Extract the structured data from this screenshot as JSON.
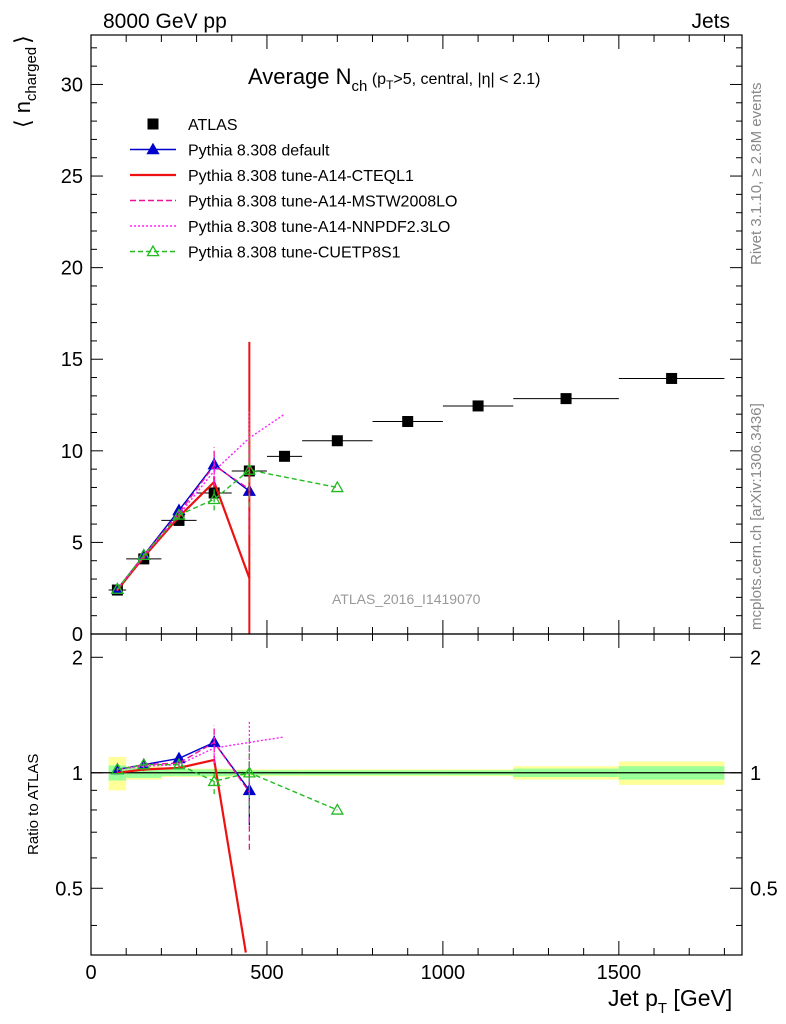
{
  "header": {
    "left": "8000 GeV pp",
    "right": "Jets"
  },
  "plot_title": {
    "main": "Average N",
    "sub": "ch",
    "rest_a": " (p",
    "rest_sub": "T",
    "rest_b": ">5, central, |η| < 2.1)"
  },
  "ylabel": {
    "open": "⟨ n",
    "sub": "charged",
    "close": "⟩"
  },
  "ratio_ylabel": "Ratio to ATLAS",
  "xlabel": {
    "main": "Jet p",
    "sub": "T",
    "unit": " [GeV]"
  },
  "side_texts": {
    "rivet": "Rivet 3.1.10, ≥ 2.8M events",
    "mcplots": "mcplots.cern.ch [arXiv:1306.3436]"
  },
  "watermark": "ATLAS_2016_I1419070",
  "colors": {
    "atlas": "#000000",
    "default": "#0000cc",
    "cteql1": "#ee1111",
    "mstw": "#ee1199",
    "nnpdf": "#ff22ff",
    "cuetp8s1": "#22bb22",
    "band_inner": "#99ff99",
    "band_outer": "#ffff99"
  },
  "chart_data": [
    {
      "type": "scatter",
      "panel": "main",
      "xlim": [
        0,
        1850
      ],
      "ylim": [
        0,
        32.7
      ],
      "yticks": [
        0,
        5,
        10,
        15,
        20,
        25,
        30
      ],
      "xticks": [
        0,
        500,
        1000,
        1500
      ],
      "series": [
        {
          "name": "ATLAS",
          "key": "atlas",
          "style": "square",
          "x": [
            75,
            150,
            250,
            350,
            450,
            550,
            700,
            900,
            1100,
            1350,
            1650
          ],
          "y": [
            2.4,
            4.1,
            6.2,
            7.7,
            8.9,
            9.7,
            10.55,
            11.6,
            12.45,
            12.85,
            13.95
          ],
          "xerr": [
            25,
            50,
            50,
            50,
            50,
            50,
            100,
            100,
            100,
            150,
            150
          ]
        },
        {
          "name": "Pythia 8.308 default",
          "key": "default",
          "style": "tri-filled",
          "dash": "",
          "x": [
            75,
            150,
            250,
            350,
            450
          ],
          "y": [
            2.45,
            4.3,
            6.75,
            9.25,
            7.8
          ],
          "err": [
            0.1,
            0.1,
            0.2,
            0.4,
            0.6
          ]
        },
        {
          "name": "Pythia 8.308 tune-A14-CTEQL1",
          "key": "cteql1",
          "style": "none",
          "dash": "",
          "x": [
            75,
            150,
            250,
            350,
            450
          ],
          "y": [
            2.4,
            4.2,
            6.4,
            8.3,
            3.05
          ],
          "err": [
            0.05,
            0.1,
            0.1,
            0.3,
            12.9
          ]
        },
        {
          "name": "Pythia 8.308 tune-A14-MSTW2008LO",
          "key": "mstw",
          "style": "none",
          "dash": "6,3",
          "x": [
            75,
            150,
            250,
            350,
            450
          ],
          "y": [
            2.45,
            4.3,
            6.6,
            9.2,
            7.9
          ],
          "err": [
            0.05,
            0.1,
            0.2,
            1.0,
            2.5
          ]
        },
        {
          "name": "Pythia 8.308 tune-A14-NNPDF2.3LO",
          "key": "nnpdf",
          "style": "none",
          "dash": "2,2",
          "x": [
            75,
            150,
            250,
            350,
            450,
            550
          ],
          "y": [
            2.45,
            4.25,
            6.5,
            8.9,
            10.7,
            12.0
          ],
          "err": [
            0.05,
            0.1,
            0.2,
            0.8,
            1.5,
            0
          ]
        },
        {
          "name": "Pythia 8.308 tune-CUETP8S1",
          "key": "cuetp8s1",
          "style": "tri-open",
          "dash": "5,3",
          "x": [
            75,
            150,
            250,
            350,
            450,
            700
          ],
          "y": [
            2.45,
            4.3,
            6.5,
            7.35,
            8.95,
            8.0
          ],
          "err": [
            0.05,
            0.1,
            0.2,
            0.6,
            2.0,
            0
          ]
        }
      ]
    },
    {
      "type": "line",
      "panel": "ratio",
      "xlim": [
        0,
        1850
      ],
      "ylim": [
        0.335,
        2.3
      ],
      "yticks": [
        0.5,
        1,
        2
      ],
      "band": {
        "edges": [
          50,
          100,
          200,
          300,
          400,
          500,
          600,
          800,
          1000,
          1200,
          1500,
          1800
        ],
        "inner": [
          0.045,
          0.03,
          0.02,
          0.02,
          0.015,
          0.015,
          0.015,
          0.015,
          0.015,
          0.025,
          0.04
        ],
        "outer": [
          0.1,
          0.04,
          0.025,
          0.025,
          0.02,
          0.02,
          0.02,
          0.02,
          0.02,
          0.04,
          0.07
        ]
      },
      "series": [
        {
          "key": "default",
          "x": [
            75,
            150,
            250,
            350,
            450
          ],
          "y": [
            1.02,
            1.05,
            1.09,
            1.2,
            0.9
          ],
          "err": [
            0.02,
            0.02,
            0.03,
            0.05,
            0.17
          ]
        },
        {
          "key": "cteql1",
          "x": [
            75,
            150,
            250,
            350,
            440
          ],
          "y": [
            1.0,
            1.02,
            1.03,
            1.08,
            0.34
          ],
          "err": [
            0.01,
            0.01,
            0.01,
            0.03,
            0
          ]
        },
        {
          "key": "mstw",
          "x": [
            75,
            150,
            250,
            350,
            450
          ],
          "y": [
            1.02,
            1.05,
            1.06,
            1.2,
            0.89
          ],
          "err": [
            0.01,
            0.02,
            0.03,
            0.13,
            0.26
          ]
        },
        {
          "key": "nnpdf",
          "x": [
            75,
            150,
            250,
            350,
            450,
            550
          ],
          "y": [
            1.02,
            1.04,
            1.05,
            1.16,
            1.2,
            1.24
          ],
          "err": [
            0.01,
            0.02,
            0.03,
            0.1,
            0.17,
            0
          ]
        },
        {
          "key": "cuetp8s1",
          "x": [
            75,
            150,
            250,
            350,
            450,
            700
          ],
          "y": [
            1.02,
            1.05,
            1.05,
            0.95,
            1.0,
            0.8
          ],
          "err": [
            0.01,
            0.02,
            0.03,
            0.07,
            0.22,
            0
          ]
        }
      ]
    }
  ]
}
